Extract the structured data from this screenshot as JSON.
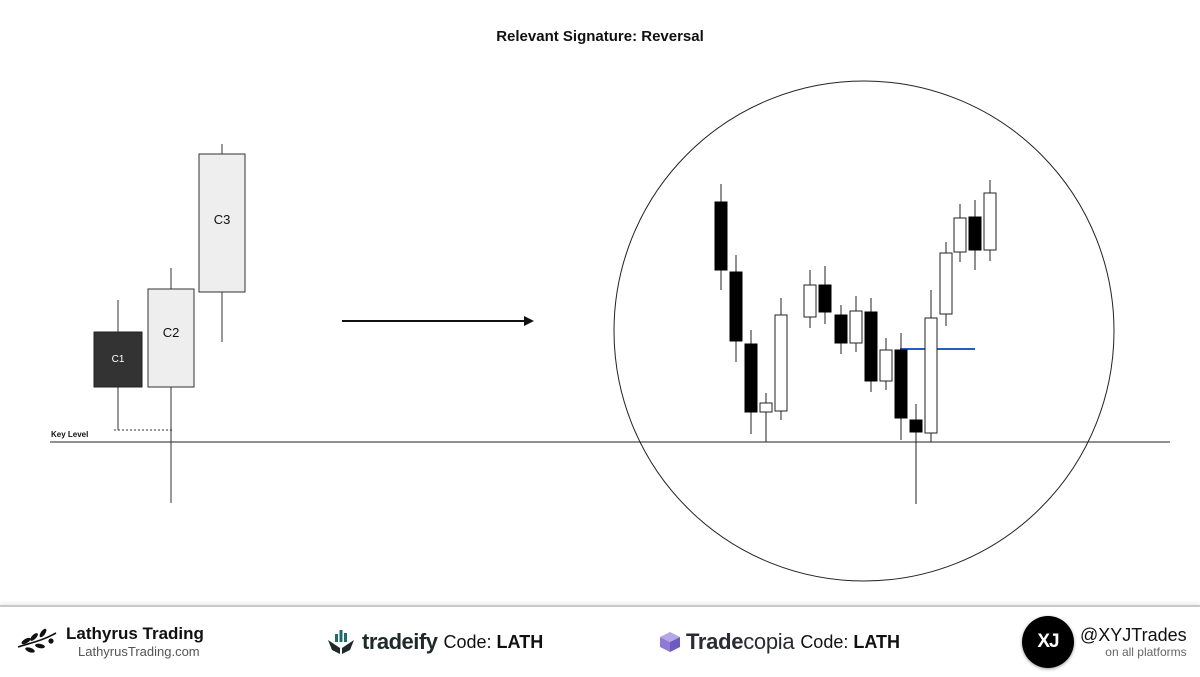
{
  "diagram": {
    "title": "Relevant Signature: Reversal",
    "key_level_label": "Key Level",
    "candles": [
      {
        "label": "C1",
        "color": "#333333"
      },
      {
        "label": "C2",
        "color": "#eeeeee"
      },
      {
        "label": "C3",
        "color": "#eeeeee"
      }
    ]
  },
  "footer": {
    "lathyrus": {
      "name": "Lathyrus Trading",
      "url": "LathyrusTrading.com",
      "icon": "olive-branch-icon"
    },
    "tradeify": {
      "brand": "tradeify",
      "code_label": "Code:",
      "code": "LATH",
      "icon": "tradeify-hands-icon"
    },
    "tradecopia": {
      "brand_strong": "Trade",
      "brand_rest": "copia",
      "code_label": "Code:",
      "code": "LATH",
      "icon": "tradecopia-cube-icon"
    },
    "xyj": {
      "logo_text": "XJ",
      "handle": "@XYJTrades",
      "sub": "on all platforms",
      "icon": "xyj-logo-icon"
    }
  }
}
